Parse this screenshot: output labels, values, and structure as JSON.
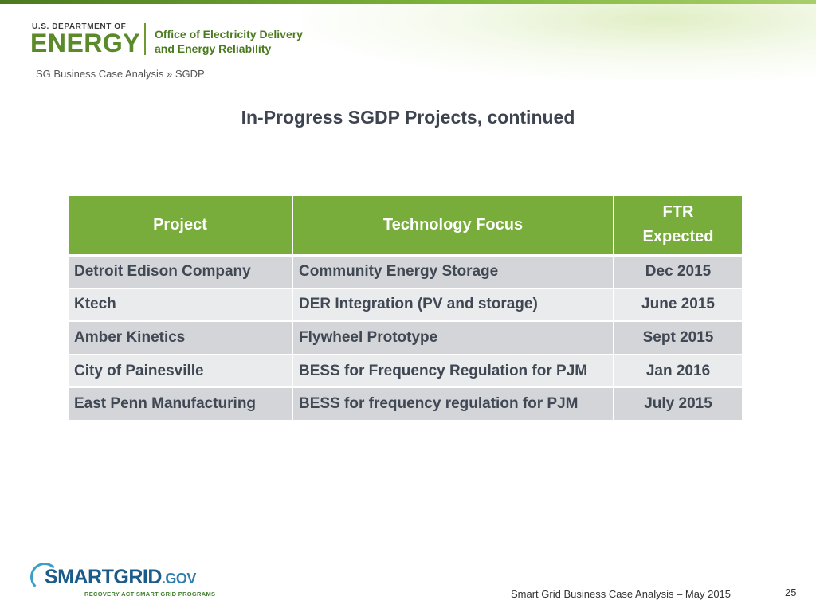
{
  "header": {
    "dept_small": "U.S. DEPARTMENT OF",
    "dept_big": "ENERGY",
    "office_line1": "Office of Electricity Delivery",
    "office_line2": "and Energy Reliability",
    "brand_color": "#78ad3c"
  },
  "breadcrumb": "SG Business Case Analysis » SGDP",
  "title": "In-Progress SGDP Projects, continued",
  "table": {
    "headers": {
      "project": "Project",
      "technology": "Technology Focus",
      "ftr_line1": "FTR",
      "ftr_line2": "Expected"
    },
    "rows": [
      {
        "project": "Detroit Edison Company",
        "technology": "Community Energy Storage",
        "ftr": "Dec 2015"
      },
      {
        "project": "Ktech",
        "technology": "DER Integration (PV and storage)",
        "ftr": "June 2015"
      },
      {
        "project": "Amber Kinetics",
        "technology": "Flywheel Prototype",
        "ftr": "Sept 2015"
      },
      {
        "project": "City of Painesville",
        "technology": "BESS for Frequency Regulation for PJM",
        "ftr": "Jan 2016"
      },
      {
        "project": "East Penn Manufacturing",
        "technology": "BESS for frequency regulation for PJM",
        "ftr": "July 2015"
      }
    ]
  },
  "footer": {
    "logo_main": "SMARTGRID",
    "logo_suffix": ".GOV",
    "logo_tagline": "RECOVERY ACT SMART GRID PROGRAMS",
    "text": "Smart Grid Business Case Analysis – May 2015",
    "page": "25"
  }
}
